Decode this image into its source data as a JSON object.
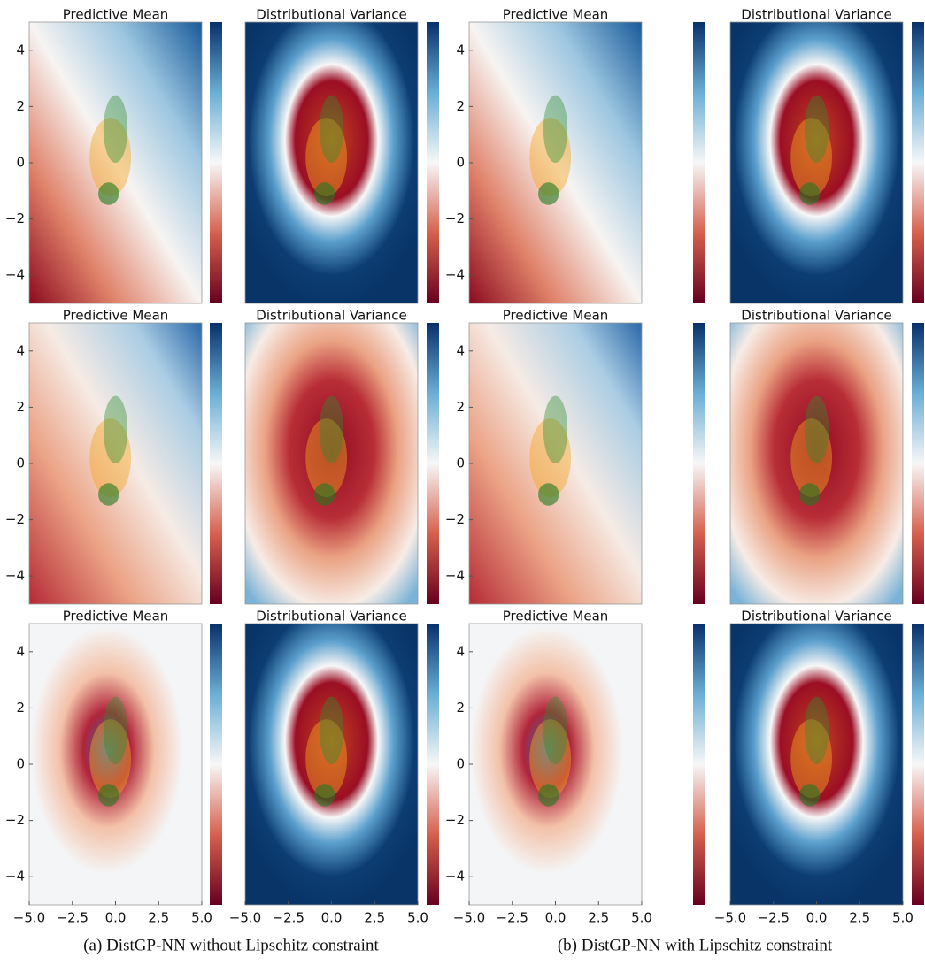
{
  "chart_data": [
    {
      "type": "contour",
      "title": "Predictive Mean",
      "xlim": [
        -5,
        5
      ],
      "ylim": [
        -5,
        5
      ],
      "yticks": [
        {
          "value": -4,
          "label": "−4"
        },
        {
          "value": -2,
          "label": "−2"
        },
        0,
        2,
        4
      ]
    },
    {
      "type": "contour",
      "title": "Distributional Variance",
      "xlim": [
        -5,
        5
      ],
      "ylim": [
        -5,
        5
      ]
    },
    {
      "type": "contour",
      "title": "Predictive Mean",
      "xlim": [
        -5,
        5
      ],
      "ylim": [
        -5,
        5
      ],
      "yticks": [
        {
          "value": -4,
          "label": "−4"
        },
        {
          "value": -2,
          "label": "−2"
        },
        0,
        2,
        4
      ]
    },
    {
      "type": "contour",
      "title": "Distributional Variance",
      "xlim": [
        -5,
        5
      ],
      "ylim": [
        -5,
        5
      ]
    },
    {
      "type": "contour",
      "title": "Predictive Mean",
      "xlim": [
        -5,
        5
      ],
      "ylim": [
        -5,
        5
      ],
      "yticks": [
        {
          "value": -4,
          "label": "−4"
        },
        {
          "value": -2,
          "label": "−2"
        },
        0,
        2,
        4
      ]
    },
    {
      "type": "contour",
      "title": "Distributional Variance",
      "xlim": [
        -5,
        5
      ],
      "ylim": [
        -5,
        5
      ]
    },
    {
      "type": "contour",
      "title": "Predictive Mean",
      "xlim": [
        -5,
        5
      ],
      "ylim": [
        -5,
        5
      ],
      "yticks": [
        {
          "value": -4,
          "label": "−4"
        },
        {
          "value": -2,
          "label": "−2"
        },
        0,
        2,
        4
      ]
    },
    {
      "type": "contour",
      "title": "Distributional Variance",
      "xlim": [
        -5,
        5
      ],
      "ylim": [
        -5,
        5
      ]
    },
    {
      "type": "contour",
      "title": "Predictive Mean",
      "xlim": [
        -5,
        5
      ],
      "ylim": [
        -5,
        5
      ],
      "yticks": [
        {
          "value": -4,
          "label": "−4"
        },
        {
          "value": -2,
          "label": "−2"
        },
        0,
        2,
        4
      ],
      "xticks": [
        {
          "value": -5,
          "label": "−5.0"
        },
        {
          "value": -2.5,
          "label": "−2.5"
        },
        {
          "value": 0,
          "label": "0.0"
        },
        {
          "value": 2.5,
          "label": "2.5"
        },
        {
          "value": 5,
          "label": "5.0"
        }
      ]
    },
    {
      "type": "contour",
      "title": "Distributional Variance",
      "xlim": [
        -5,
        5
      ],
      "ylim": [
        -5,
        5
      ],
      "xticks": [
        {
          "value": -5,
          "label": "−5.0"
        },
        {
          "value": -2.5,
          "label": "−2.5"
        },
        {
          "value": 0,
          "label": "0.0"
        },
        {
          "value": 2.5,
          "label": "2.5"
        },
        {
          "value": 5,
          "label": "5.0"
        }
      ]
    },
    {
      "type": "contour",
      "title": "Predictive Mean",
      "xlim": [
        -5,
        5
      ],
      "ylim": [
        -5,
        5
      ],
      "yticks": [
        {
          "value": -4,
          "label": "−4"
        },
        {
          "value": -2,
          "label": "−2"
        },
        0,
        2,
        4
      ],
      "xticks": [
        {
          "value": -5,
          "label": "−5.0"
        },
        {
          "value": -2.5,
          "label": "−2.5"
        },
        {
          "value": 0,
          "label": "0.0"
        },
        {
          "value": 2.5,
          "label": "2.5"
        },
        {
          "value": 5,
          "label": "5.0"
        }
      ]
    },
    {
      "type": "contour",
      "title": "Distributional Variance",
      "xlim": [
        -5,
        5
      ],
      "ylim": [
        -5,
        5
      ],
      "xticks": [
        {
          "value": -5,
          "label": "−5.0"
        },
        {
          "value": -2.5,
          "label": "−2.5"
        },
        {
          "value": 0,
          "label": "0.0"
        },
        {
          "value": 2.5,
          "label": "2.5"
        },
        {
          "value": 5,
          "label": "5.0"
        }
      ]
    }
  ],
  "captions": [
    "(a) DistGP-NN without Lipschitz constraint",
    "(b) DistGP-NN with Lipschitz constraint"
  ]
}
